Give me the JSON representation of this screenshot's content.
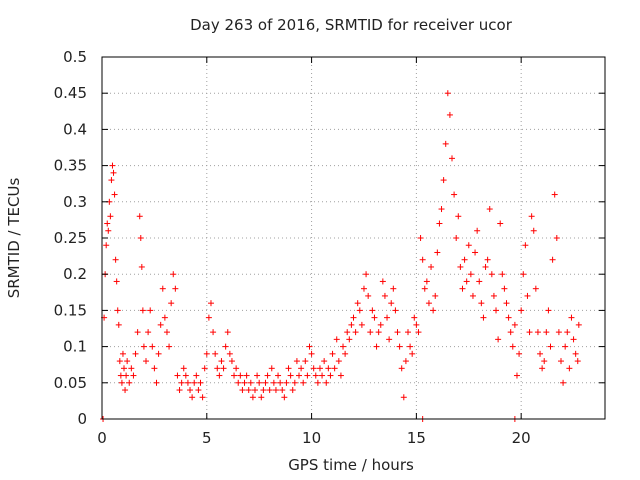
{
  "chart_data": {
    "type": "scatter",
    "title": "Day 263 of 2016, SRMTID for receiver ucor",
    "xlabel": "GPS time / hours",
    "ylabel": "SRMTID / TECUs",
    "xlim": [
      0,
      24
    ],
    "ylim": [
      0,
      0.5
    ],
    "xticks": [
      0,
      5,
      10,
      15,
      20
    ],
    "xtick_labels": [
      "0",
      "5",
      "10",
      "15",
      "20"
    ],
    "yticks": [
      0,
      0.05,
      0.1,
      0.15,
      0.2,
      0.25,
      0.3,
      0.35,
      0.4,
      0.45,
      0.5
    ],
    "ytick_labels": [
      "0",
      "0.05",
      "0.1",
      "0.15",
      "0.2",
      "0.25",
      "0.3",
      "0.35",
      "0.4",
      "0.45",
      "0.5"
    ],
    "grid": true,
    "marker": "+",
    "color": "#ff0000",
    "series": [
      {
        "name": "SRMTID",
        "points": [
          [
            0.05,
            0.0
          ],
          [
            0.1,
            0.14
          ],
          [
            0.15,
            0.2
          ],
          [
            0.2,
            0.24
          ],
          [
            0.25,
            0.27
          ],
          [
            0.3,
            0.26
          ],
          [
            0.35,
            0.3
          ],
          [
            0.4,
            0.28
          ],
          [
            0.45,
            0.33
          ],
          [
            0.5,
            0.35
          ],
          [
            0.55,
            0.34
          ],
          [
            0.6,
            0.31
          ],
          [
            0.65,
            0.22
          ],
          [
            0.7,
            0.19
          ],
          [
            0.75,
            0.15
          ],
          [
            0.8,
            0.13
          ],
          [
            0.85,
            0.08
          ],
          [
            0.9,
            0.06
          ],
          [
            0.95,
            0.05
          ],
          [
            1.0,
            0.09
          ],
          [
            1.05,
            0.07
          ],
          [
            1.1,
            0.04
          ],
          [
            1.15,
            0.06
          ],
          [
            1.2,
            0.08
          ],
          [
            1.3,
            0.05
          ],
          [
            1.4,
            0.07
          ],
          [
            1.5,
            0.06
          ],
          [
            1.6,
            0.09
          ],
          [
            1.7,
            0.12
          ],
          [
            1.8,
            0.28
          ],
          [
            1.85,
            0.25
          ],
          [
            1.9,
            0.21
          ],
          [
            1.95,
            0.15
          ],
          [
            2.0,
            0.1
          ],
          [
            2.1,
            0.08
          ],
          [
            2.2,
            0.12
          ],
          [
            2.3,
            0.15
          ],
          [
            2.4,
            0.1
          ],
          [
            2.5,
            0.07
          ],
          [
            2.6,
            0.05
          ],
          [
            2.7,
            0.09
          ],
          [
            2.8,
            0.13
          ],
          [
            2.9,
            0.18
          ],
          [
            3.0,
            0.14
          ],
          [
            3.1,
            0.12
          ],
          [
            3.2,
            0.1
          ],
          [
            3.3,
            0.16
          ],
          [
            3.4,
            0.2
          ],
          [
            3.5,
            0.18
          ],
          [
            3.6,
            0.06
          ],
          [
            3.7,
            0.04
          ],
          [
            3.8,
            0.05
          ],
          [
            3.9,
            0.07
          ],
          [
            4.0,
            0.06
          ],
          [
            4.1,
            0.05
          ],
          [
            4.2,
            0.04
          ],
          [
            4.3,
            0.03
          ],
          [
            4.4,
            0.05
          ],
          [
            4.5,
            0.06
          ],
          [
            4.6,
            0.04
          ],
          [
            4.7,
            0.05
          ],
          [
            4.8,
            0.03
          ],
          [
            4.9,
            0.07
          ],
          [
            5.0,
            0.09
          ],
          [
            5.1,
            0.14
          ],
          [
            5.2,
            0.16
          ],
          [
            5.3,
            0.12
          ],
          [
            5.4,
            0.09
          ],
          [
            5.5,
            0.07
          ],
          [
            5.6,
            0.06
          ],
          [
            5.7,
            0.08
          ],
          [
            5.8,
            0.07
          ],
          [
            5.9,
            0.1
          ],
          [
            6.0,
            0.12
          ],
          [
            6.1,
            0.09
          ],
          [
            6.2,
            0.08
          ],
          [
            6.3,
            0.06
          ],
          [
            6.4,
            0.07
          ],
          [
            6.5,
            0.05
          ],
          [
            6.6,
            0.06
          ],
          [
            6.7,
            0.04
          ],
          [
            6.8,
            0.05
          ],
          [
            6.9,
            0.06
          ],
          [
            7.0,
            0.04
          ],
          [
            7.1,
            0.05
          ],
          [
            7.2,
            0.03
          ],
          [
            7.3,
            0.04
          ],
          [
            7.4,
            0.06
          ],
          [
            7.5,
            0.05
          ],
          [
            7.6,
            0.03
          ],
          [
            7.7,
            0.04
          ],
          [
            7.8,
            0.05
          ],
          [
            7.9,
            0.06
          ],
          [
            8.0,
            0.04
          ],
          [
            8.1,
            0.07
          ],
          [
            8.2,
            0.05
          ],
          [
            8.3,
            0.04
          ],
          [
            8.4,
            0.06
          ],
          [
            8.5,
            0.05
          ],
          [
            8.6,
            0.04
          ],
          [
            8.7,
            0.03
          ],
          [
            8.8,
            0.05
          ],
          [
            8.9,
            0.07
          ],
          [
            9.0,
            0.06
          ],
          [
            9.1,
            0.04
          ],
          [
            9.2,
            0.05
          ],
          [
            9.3,
            0.08
          ],
          [
            9.4,
            0.06
          ],
          [
            9.5,
            0.07
          ],
          [
            9.6,
            0.05
          ],
          [
            9.7,
            0.08
          ],
          [
            9.8,
            0.06
          ],
          [
            9.9,
            0.1
          ],
          [
            10.0,
            0.09
          ],
          [
            10.1,
            0.07
          ],
          [
            10.2,
            0.06
          ],
          [
            10.3,
            0.05
          ],
          [
            10.4,
            0.07
          ],
          [
            10.5,
            0.06
          ],
          [
            10.6,
            0.08
          ],
          [
            10.7,
            0.05
          ],
          [
            10.8,
            0.07
          ],
          [
            10.9,
            0.06
          ],
          [
            11.0,
            0.09
          ],
          [
            11.1,
            0.07
          ],
          [
            11.2,
            0.11
          ],
          [
            11.3,
            0.08
          ],
          [
            11.4,
            0.06
          ],
          [
            11.5,
            0.1
          ],
          [
            11.6,
            0.09
          ],
          [
            11.7,
            0.12
          ],
          [
            11.8,
            0.11
          ],
          [
            11.9,
            0.13
          ],
          [
            12.0,
            0.14
          ],
          [
            12.1,
            0.12
          ],
          [
            12.2,
            0.16
          ],
          [
            12.3,
            0.15
          ],
          [
            12.4,
            0.13
          ],
          [
            12.5,
            0.18
          ],
          [
            12.6,
            0.2
          ],
          [
            12.7,
            0.17
          ],
          [
            12.8,
            0.12
          ],
          [
            12.9,
            0.15
          ],
          [
            13.0,
            0.14
          ],
          [
            13.1,
            0.1
          ],
          [
            13.2,
            0.12
          ],
          [
            13.3,
            0.13
          ],
          [
            13.4,
            0.19
          ],
          [
            13.5,
            0.17
          ],
          [
            13.6,
            0.14
          ],
          [
            13.7,
            0.11
          ],
          [
            13.8,
            0.16
          ],
          [
            13.9,
            0.18
          ],
          [
            14.0,
            0.15
          ],
          [
            14.1,
            0.12
          ],
          [
            14.2,
            0.1
          ],
          [
            14.3,
            0.07
          ],
          [
            14.4,
            0.03
          ],
          [
            14.5,
            0.08
          ],
          [
            14.6,
            0.12
          ],
          [
            14.7,
            0.1
          ],
          [
            14.8,
            0.09
          ],
          [
            14.9,
            0.14
          ],
          [
            15.0,
            0.13
          ],
          [
            15.1,
            0.12
          ],
          [
            15.2,
            0.25
          ],
          [
            15.3,
            0.22
          ],
          [
            15.4,
            0.18
          ],
          [
            15.5,
            0.19
          ],
          [
            15.6,
            0.16
          ],
          [
            15.7,
            0.21
          ],
          [
            15.8,
            0.15
          ],
          [
            15.9,
            0.17
          ],
          [
            16.0,
            0.23
          ],
          [
            16.1,
            0.27
          ],
          [
            16.2,
            0.29
          ],
          [
            16.3,
            0.33
          ],
          [
            16.4,
            0.38
          ],
          [
            16.5,
            0.45
          ],
          [
            16.6,
            0.42
          ],
          [
            16.7,
            0.36
          ],
          [
            16.8,
            0.31
          ],
          [
            16.9,
            0.25
          ],
          [
            17.0,
            0.28
          ],
          [
            17.1,
            0.21
          ],
          [
            17.2,
            0.18
          ],
          [
            17.3,
            0.22
          ],
          [
            17.4,
            0.19
          ],
          [
            17.5,
            0.24
          ],
          [
            17.6,
            0.2
          ],
          [
            17.7,
            0.17
          ],
          [
            17.8,
            0.23
          ],
          [
            17.9,
            0.26
          ],
          [
            18.0,
            0.19
          ],
          [
            18.1,
            0.16
          ],
          [
            18.2,
            0.14
          ],
          [
            18.3,
            0.21
          ],
          [
            18.4,
            0.22
          ],
          [
            18.5,
            0.29
          ],
          [
            18.6,
            0.2
          ],
          [
            18.7,
            0.17
          ],
          [
            18.8,
            0.15
          ],
          [
            18.9,
            0.11
          ],
          [
            19.0,
            0.27
          ],
          [
            19.1,
            0.2
          ],
          [
            19.2,
            0.18
          ],
          [
            19.3,
            0.16
          ],
          [
            19.4,
            0.14
          ],
          [
            19.5,
            0.12
          ],
          [
            19.6,
            0.1
          ],
          [
            19.7,
            0.13
          ],
          [
            19.8,
            0.06
          ],
          [
            19.9,
            0.09
          ],
          [
            20.0,
            0.15
          ],
          [
            20.1,
            0.2
          ],
          [
            20.2,
            0.24
          ],
          [
            20.3,
            0.17
          ],
          [
            20.4,
            0.12
          ],
          [
            20.5,
            0.28
          ],
          [
            20.6,
            0.26
          ],
          [
            20.7,
            0.18
          ],
          [
            20.8,
            0.12
          ],
          [
            20.9,
            0.09
          ],
          [
            21.0,
            0.07
          ],
          [
            21.1,
            0.08
          ],
          [
            21.2,
            0.12
          ],
          [
            21.3,
            0.15
          ],
          [
            21.4,
            0.1
          ],
          [
            21.5,
            0.22
          ],
          [
            21.6,
            0.31
          ],
          [
            21.7,
            0.25
          ],
          [
            21.8,
            0.12
          ],
          [
            21.9,
            0.08
          ],
          [
            22.0,
            0.05
          ],
          [
            22.1,
            0.1
          ],
          [
            22.2,
            0.12
          ],
          [
            22.3,
            0.07
          ],
          [
            22.4,
            0.14
          ],
          [
            22.5,
            0.11
          ],
          [
            22.6,
            0.09
          ],
          [
            22.7,
            0.08
          ],
          [
            22.75,
            0.13
          ],
          [
            19.7,
            0.0
          ],
          [
            15.3,
            0.0
          ]
        ]
      }
    ]
  }
}
